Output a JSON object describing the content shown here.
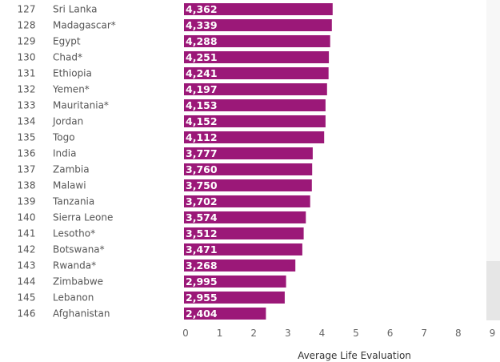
{
  "chart_data": {
    "type": "bar",
    "orientation": "horizontal",
    "ranks": [
      "127",
      "128",
      "129",
      "130",
      "131",
      "132",
      "133",
      "134",
      "135",
      "136",
      "137",
      "138",
      "139",
      "140",
      "141",
      "142",
      "143",
      "144",
      "145",
      "146"
    ],
    "categories": [
      "Sri Lanka",
      "Madagascar*",
      "Egypt",
      "Chad*",
      "Ethiopia",
      "Yemen*",
      "Mauritania*",
      "Jordan",
      "Togo",
      "India",
      "Zambia",
      "Malawi",
      "Tanzania",
      "Sierra Leone",
      "Lesotho*",
      "Botswana*",
      "Rwanda*",
      "Zimbabwe",
      "Lebanon",
      "Afghanistan"
    ],
    "values": [
      4.362,
      4.339,
      4.288,
      4.251,
      4.241,
      4.197,
      4.153,
      4.152,
      4.112,
      3.777,
      3.76,
      3.75,
      3.702,
      3.574,
      3.512,
      3.471,
      3.268,
      2.995,
      2.955,
      2.404
    ],
    "value_labels": [
      "4,362",
      "4,339",
      "4,288",
      "4,251",
      "4,241",
      "4,197",
      "4,153",
      "4,152",
      "4,112",
      "3,777",
      "3,760",
      "3,750",
      "3,702",
      "3,574",
      "3,512",
      "3,471",
      "3,268",
      "2,995",
      "2,955",
      "2,404"
    ],
    "xlabel": "Average Life Evaluation",
    "xlim": [
      0,
      9
    ],
    "xticks": [
      "0",
      "1",
      "2",
      "3",
      "4",
      "5",
      "6",
      "7",
      "8",
      "9"
    ],
    "bar_color": "#9b1878",
    "grid": false,
    "legend": "none"
  }
}
